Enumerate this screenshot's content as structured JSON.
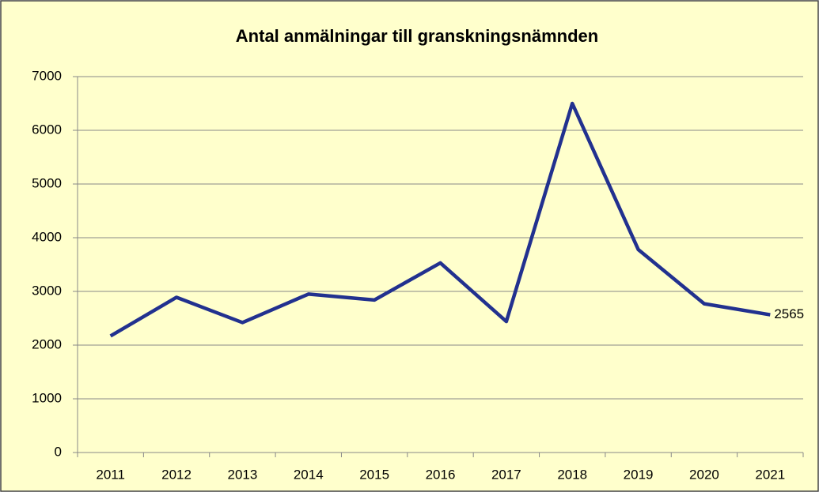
{
  "chart_data": {
    "type": "line",
    "title": "Antal anmälningar till granskningsnämnden",
    "categories": [
      "2011",
      "2012",
      "2013",
      "2014",
      "2015",
      "2016",
      "2017",
      "2018",
      "2019",
      "2020",
      "2021"
    ],
    "series": [
      {
        "color": "#22318f",
        "values": [
          2170,
          2890,
          2420,
          2950,
          2840,
          3530,
          2440,
          6500,
          3780,
          2770,
          2565
        ]
      }
    ],
    "ylim": [
      0,
      7000
    ],
    "yticks": [
      0,
      1000,
      2000,
      3000,
      4000,
      5000,
      6000,
      7000
    ],
    "grid": true
  }
}
